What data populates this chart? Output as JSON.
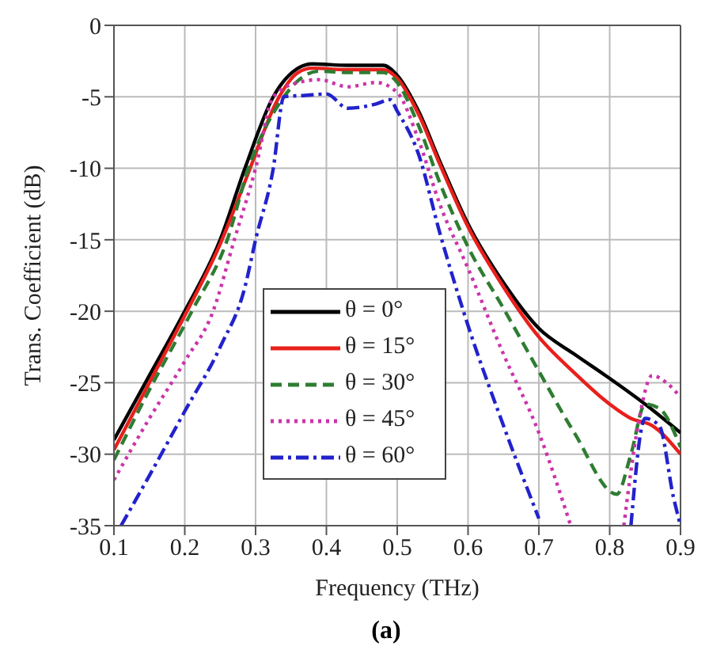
{
  "chart_data": {
    "type": "line",
    "xlabel": "Frequency (THz)",
    "ylabel": "Trans. Coefficient (dB)",
    "annotations": [
      "(a)"
    ],
    "xlim": [
      0.1,
      0.9
    ],
    "xticks": [
      0.1,
      0.2,
      0.3,
      0.4,
      0.5,
      0.6,
      0.7,
      0.8,
      0.9
    ],
    "ylim": [
      -35,
      0
    ],
    "yticks": [
      -35,
      -30,
      -25,
      -20,
      -15,
      -10,
      -5,
      0
    ],
    "grid": true,
    "legend": "bottom left",
    "marker": "none",
    "series": [
      {
        "name": "θ = 0°",
        "color": "#000000",
        "line_style": "solid",
        "x": [
          0.1,
          0.15,
          0.2,
          0.25,
          0.285,
          0.325,
          0.36,
          0.38,
          0.43,
          0.48,
          0.5,
          0.53,
          0.56,
          0.6,
          0.65,
          0.7,
          0.75,
          0.8,
          0.85,
          0.9
        ],
        "values": [
          -29,
          -24.5,
          -20,
          -15,
          -10,
          -5,
          -3,
          -2.7,
          -2.8,
          -2.8,
          -3.5,
          -6,
          -9.5,
          -13.9,
          -18,
          -21.2,
          -23,
          -24.7,
          -26.5,
          -28.5
        ]
      },
      {
        "name": "θ = 15°",
        "color": "#e8201c",
        "line_style": "solid",
        "x": [
          0.1,
          0.15,
          0.2,
          0.25,
          0.29,
          0.33,
          0.36,
          0.38,
          0.43,
          0.48,
          0.5,
          0.53,
          0.56,
          0.6,
          0.65,
          0.7,
          0.75,
          0.8,
          0.83,
          0.86,
          0.9
        ],
        "values": [
          -29.7,
          -25,
          -20.3,
          -15.3,
          -10.3,
          -5.3,
          -3.3,
          -3,
          -3.1,
          -3.1,
          -3.7,
          -6.2,
          -9.7,
          -14.1,
          -18.3,
          -21.8,
          -24.3,
          -26.5,
          -27.5,
          -28,
          -30
        ]
      },
      {
        "name": "θ = 30°",
        "color": "#2e7d32",
        "line_style": "dashed",
        "x": [
          0.1,
          0.15,
          0.21,
          0.26,
          0.29,
          0.34,
          0.37,
          0.39,
          0.43,
          0.48,
          0.5,
          0.53,
          0.56,
          0.6,
          0.65,
          0.7,
          0.75,
          0.81,
          0.83,
          0.85,
          0.87,
          0.9
        ],
        "values": [
          -30.4,
          -25.5,
          -20,
          -15,
          -10,
          -5,
          -3.5,
          -3.2,
          -3.3,
          -3.3,
          -4,
          -7,
          -11,
          -15.5,
          -19.8,
          -24.2,
          -28.5,
          -32.8,
          -30,
          -26.5,
          -26.8,
          -29.5
        ]
      },
      {
        "name": "θ = 45°",
        "color": "#cc33aa",
        "line_style": "dotted",
        "x": [
          0.1,
          0.15,
          0.2,
          0.24,
          0.27,
          0.3,
          0.325,
          0.36,
          0.39,
          0.43,
          0.47,
          0.5,
          0.53,
          0.56,
          0.6,
          0.65,
          0.7,
          0.745,
          null,
          0.82,
          0.84,
          0.86,
          0.88,
          0.9
        ],
        "values": [
          -31.8,
          -27.5,
          -23.5,
          -20,
          -15,
          -10,
          -5,
          -4,
          -3.8,
          -4.3,
          -4,
          -4.7,
          -8,
          -12.5,
          -17,
          -23,
          -28.5,
          -35,
          null,
          -35,
          -28,
          -24.5,
          -25,
          -26
        ]
      },
      {
        "name": "θ = 60°",
        "color": "#2222cc",
        "line_style": "dashdot",
        "x": [
          0.11,
          0.15,
          0.2,
          0.25,
          0.285,
          0.3,
          0.325,
          0.34,
          0.37,
          0.4,
          0.43,
          0.47,
          0.49,
          0.5,
          0.53,
          0.56,
          0.6,
          0.65,
          0.7,
          null,
          0.83,
          0.85,
          0.87,
          0.89,
          0.9
        ],
        "values": [
          -35,
          -31.5,
          -27,
          -22.5,
          -18.3,
          -15,
          -10,
          -5,
          -4.9,
          -4.8,
          -5.8,
          -5.5,
          -5.2,
          -6,
          -9,
          -14.5,
          -21,
          -28,
          -34.5,
          null,
          -35,
          -27.5,
          -28,
          -33,
          -35
        ]
      }
    ]
  }
}
